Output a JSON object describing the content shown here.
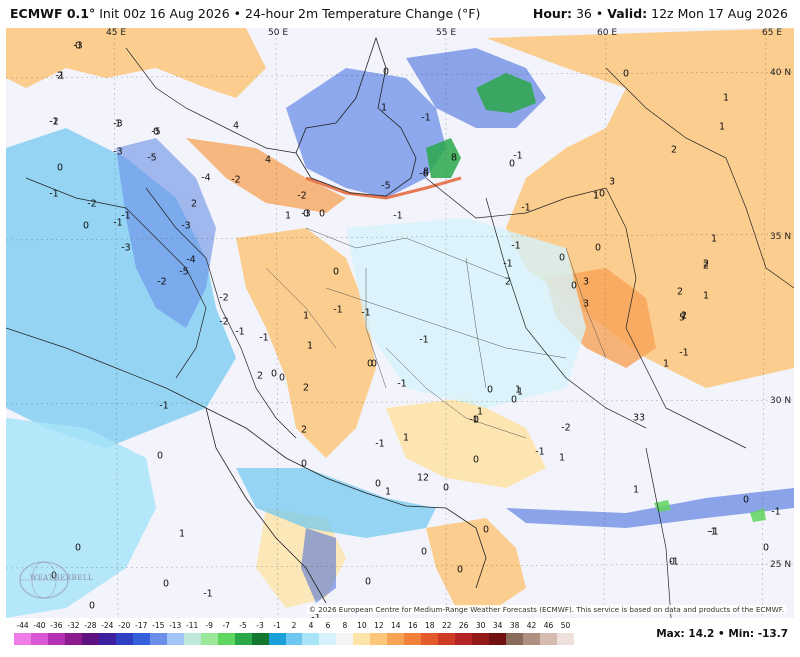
{
  "header": {
    "model": "ECMWF 0.1°",
    "init": "Init 00z 16 Aug 2026",
    "product": "24-hour 2m Temperature Change (°F)",
    "hour_label": "Hour:",
    "hour": "36",
    "valid_label": "Valid:",
    "valid": "12z Mon 17 Aug 2026"
  },
  "map": {
    "lon_labels": [
      "45 E",
      "50 E",
      "55 E",
      "60 E",
      "65 E"
    ],
    "lat_labels": [
      "40 N",
      "35 N",
      "30 N",
      "25 N"
    ],
    "copyright": "© 2026 European Centre for Medium-Range Weather Forecasts (ECMWF). This service is based on data and products of the ECMWF.",
    "logo": "WEATHERBELL",
    "value_labels": [
      "-3",
      "2",
      "-3",
      "-2",
      "-5",
      "-5",
      "-3",
      "4",
      "-4",
      "2",
      "0",
      "-1",
      "-2",
      "-1",
      "0",
      "-3",
      "4",
      "-2",
      "-5",
      "-6",
      "8",
      "8",
      "1",
      "0",
      "-2",
      "-3",
      "-4",
      "-2",
      "-5",
      "-3",
      "1",
      "-1",
      "0",
      "0",
      "-1",
      "3",
      "3",
      "1",
      "0",
      "-1",
      "0",
      "0",
      "1",
      "-1",
      "2",
      "0",
      "1",
      "1",
      "0",
      "1",
      "-1",
      "-1",
      "-1",
      "0",
      "2",
      "-2",
      "-2",
      "-1",
      "-1",
      "2",
      "0",
      "2",
      "1",
      "1",
      "-1",
      "-1",
      "1",
      "-1",
      "1",
      "0",
      "0",
      "0",
      "-1",
      "-1",
      "0",
      "-1",
      "0",
      "1",
      "2",
      "2",
      "2",
      "2",
      "5",
      "3",
      "1",
      "3",
      "-1",
      "1",
      "1",
      "0",
      "1",
      "0",
      "0",
      "2",
      "1",
      "2",
      "-1",
      "3",
      "1",
      "-2",
      "1",
      "0",
      "-1",
      "0",
      "0",
      "-1",
      "-1",
      "-1",
      "-1",
      "0",
      "0",
      "0",
      "0",
      "1",
      "0",
      "0",
      "1",
      "0",
      "0",
      "-1",
      "0",
      "0",
      "0",
      "0",
      "-1",
      "0",
      "-1",
      "1",
      "-1",
      "0"
    ]
  },
  "colorbar": {
    "labels": [
      "-44",
      "-40",
      "-36",
      "-32",
      "-28",
      "-24",
      "-20",
      "-17",
      "-15",
      "-13",
      "-11",
      "-9",
      "-7",
      "-5",
      "-3",
      "-1",
      "2",
      "4",
      "6",
      "8",
      "10",
      "12",
      "14",
      "16",
      "18",
      "22",
      "26",
      "30",
      "34",
      "38",
      "42",
      "46",
      "50"
    ],
    "colors": [
      "#f07ce8",
      "#d957d4",
      "#b531b3",
      "#8c1a8f",
      "#5e1180",
      "#3b1f9e",
      "#2f3fc4",
      "#3560db",
      "#6b8fe8",
      "#9fc4f5",
      "#bfe8d8",
      "#9be89b",
      "#5fd65f",
      "#2aa84a",
      "#13782f",
      "#1aa0d8",
      "#6cc8f0",
      "#a8e4f8",
      "#d6f2fb",
      "#f5f5f5",
      "#fde3a8",
      "#fbc57a",
      "#f7a356",
      "#f18038",
      "#e35b2b",
      "#cf3a25",
      "#b52424",
      "#941a1a",
      "#701010",
      "#8a6a5a",
      "#b09080",
      "#d6bcb0",
      "#f0e0dc"
    ],
    "max_label": "Max:",
    "max": "14.2",
    "min_label": "Min:",
    "min": "-13.7"
  }
}
